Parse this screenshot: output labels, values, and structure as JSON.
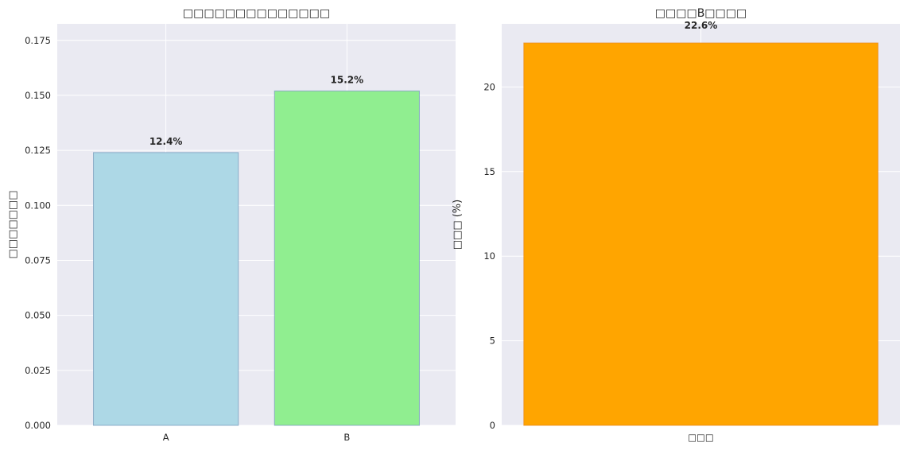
{
  "chart_data": [
    {
      "type": "bar",
      "title": "□□□□□□□□□□□□□□",
      "ylabel": "□□□□□□□",
      "xlabel": "",
      "categories": [
        "A",
        "B"
      ],
      "values": [
        0.124,
        0.152
      ],
      "data_labels": [
        "12.4%",
        "15.2%"
      ],
      "colors": [
        "#add8e6",
        "#90ee90"
      ],
      "ylim": [
        0,
        0.1825
      ],
      "yticks": [
        0,
        0.025,
        0.05,
        0.075,
        0.1,
        0.125,
        0.15,
        0.175
      ],
      "ytick_labels": [
        "0.000",
        "0.025",
        "0.050",
        "0.075",
        "0.100",
        "0.125",
        "0.150",
        "0.175"
      ],
      "grid": true
    },
    {
      "type": "bar",
      "title": "□□□□B□□□□",
      "ylabel": "□□□ (%)",
      "xlabel": "",
      "categories": [
        "□□□"
      ],
      "values": [
        22.6
      ],
      "data_labels": [
        "22.6%"
      ],
      "colors": [
        "#ffa500"
      ],
      "ylim": [
        0,
        23.73
      ],
      "yticks": [
        0,
        5,
        10,
        15,
        20
      ],
      "ytick_labels": [
        "0",
        "5",
        "10",
        "15",
        "20"
      ],
      "grid": true
    }
  ]
}
